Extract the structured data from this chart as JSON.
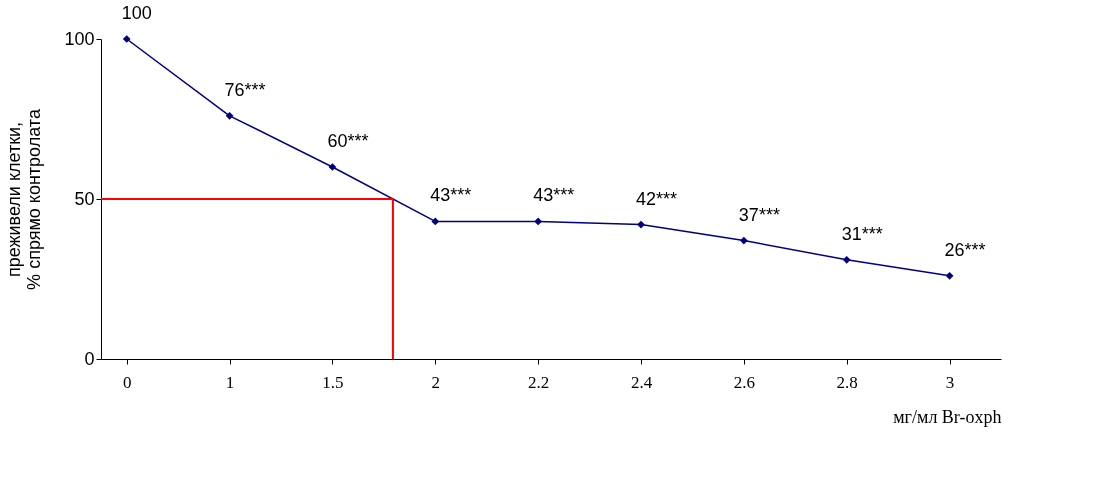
{
  "chart_data": {
    "type": "line",
    "xlabel": "мг/мл   Br-oxph",
    "ylabel": "преживели клетки,\n% спрямо контролата",
    "categories": [
      "0",
      "1",
      "1.5",
      "2",
      "2.2",
      "2.4",
      "2.6",
      "2.8",
      "3"
    ],
    "series": [
      {
        "color": "#000080",
        "values": [
          100,
          76,
          60,
          43,
          43,
          42,
          37,
          31,
          26
        ],
        "value_labels": [
          "100",
          "76***",
          "60***",
          "43***",
          "43***",
          "42***",
          "37***",
          "31***",
          "26***"
        ]
      }
    ],
    "ylim": [
      0,
      100
    ],
    "yticks": [
      0,
      50,
      100
    ],
    "ref_lines": [
      {
        "axis": "y",
        "value": 50,
        "color": "#ff0000"
      }
    ],
    "marker": "diamond",
    "line_style": "solid",
    "grid": false
  }
}
